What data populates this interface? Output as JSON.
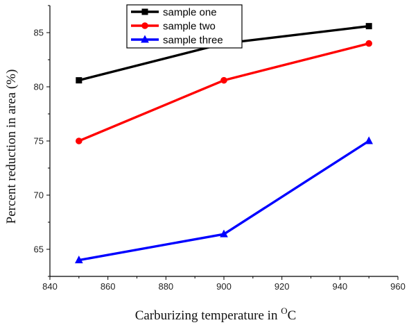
{
  "chart_data": {
    "type": "line",
    "x": [
      850,
      900,
      950
    ],
    "series": [
      {
        "name": "sample one",
        "values": [
          80.6,
          84.0,
          85.6
        ],
        "color": "#000000",
        "marker": "square"
      },
      {
        "name": "sample two",
        "values": [
          75.0,
          80.6,
          84.0
        ],
        "color": "#ff0000",
        "marker": "circle"
      },
      {
        "name": "sample three",
        "values": [
          64.0,
          66.4,
          75.0
        ],
        "color": "#0000ff",
        "marker": "triangle"
      }
    ],
    "xlabel": {
      "main": "Carburizing temperature in ",
      "sup": "O",
      "unit": "C"
    },
    "ylabel": "Percent reduction in area  (%)",
    "xlim": [
      840,
      960
    ],
    "ylim": [
      62.5,
      87.5
    ],
    "xticks": [
      840,
      860,
      880,
      900,
      920,
      940,
      960
    ],
    "yticks": [
      65,
      70,
      75,
      80,
      85
    ],
    "grid": false,
    "legend_position": "top-center"
  }
}
